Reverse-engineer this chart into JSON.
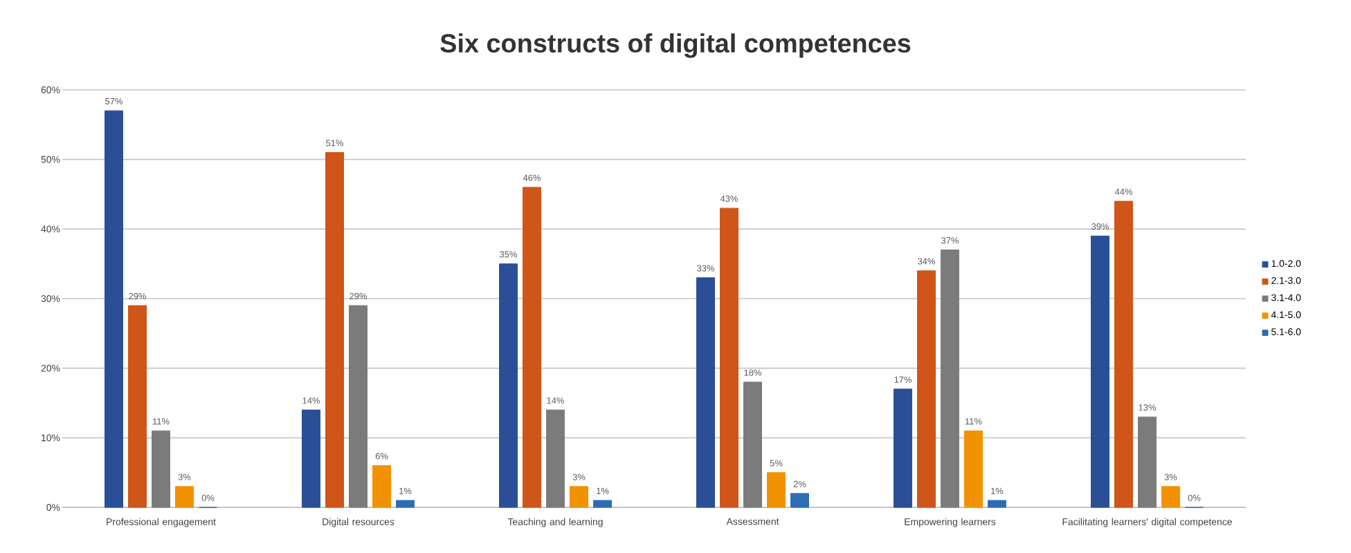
{
  "chart_data": {
    "type": "bar",
    "title": "Six constructs of digital competences",
    "categories": [
      "Professional engagement",
      "Digital resources",
      "Teaching and learning",
      "Assessment",
      "Empowering learners",
      "Facilitating learners' digital competence"
    ],
    "series": [
      {
        "name": "1.0-2.0",
        "color": "#2a4f97",
        "values": [
          57,
          14,
          35,
          33,
          17,
          39
        ],
        "value_labels": [
          "57%",
          "14%",
          "35%",
          "33%",
          "17%",
          "39%"
        ]
      },
      {
        "name": "2.1-3.0",
        "color": "#d05518",
        "values": [
          29,
          51,
          46,
          43,
          34,
          44
        ],
        "value_labels": [
          "29%",
          "51%",
          "46%",
          "43%",
          "34%",
          "44%"
        ]
      },
      {
        "name": "3.1-4.0",
        "color": "#7b7b7b",
        "values": [
          11,
          29,
          14,
          18,
          37,
          13
        ],
        "value_labels": [
          "11%",
          "29%",
          "14%",
          "18%",
          "37%",
          "13%"
        ]
      },
      {
        "name": "4.1-5.0",
        "color": "#f39200",
        "values": [
          3,
          6,
          3,
          5,
          11,
          3
        ],
        "value_labels": [
          "3%",
          "6%",
          "3%",
          "5%",
          "11%",
          "3%"
        ]
      },
      {
        "name": "5.1-6.0",
        "color": "#2e6db4",
        "values": [
          0,
          1,
          1,
          2,
          1,
          0
        ],
        "value_labels": [
          "0%",
          "1%",
          "1%",
          "2%",
          "1%",
          "0%"
        ]
      }
    ],
    "ylim": [
      0,
      60
    ],
    "yticks": [
      {
        "value": 0,
        "label": "0%"
      },
      {
        "value": 10,
        "label": "10%"
      },
      {
        "value": 20,
        "label": "20%"
      },
      {
        "value": 30,
        "label": "30%"
      },
      {
        "value": 40,
        "label": "40%"
      },
      {
        "value": 50,
        "label": "50%"
      },
      {
        "value": 60,
        "label": "60%"
      }
    ],
    "grid": "y",
    "legend": "right"
  }
}
